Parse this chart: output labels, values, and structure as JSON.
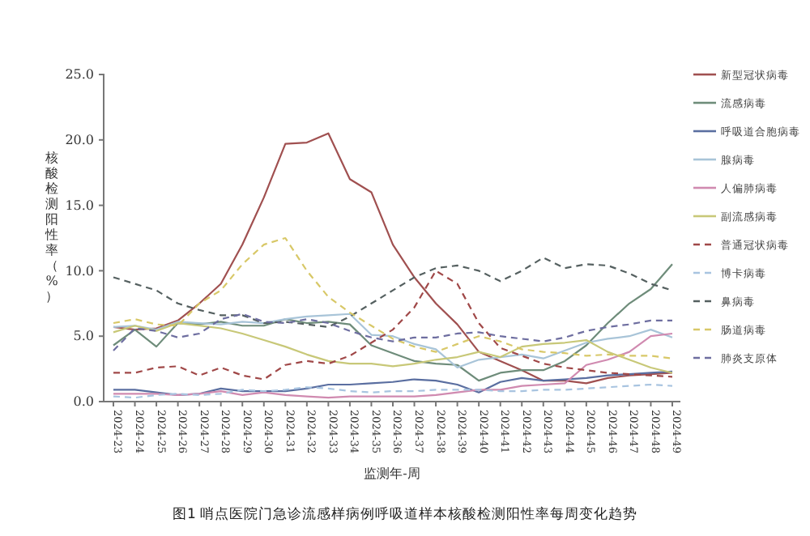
{
  "chart_data": {
    "type": "line",
    "xlabel": "监测年-周",
    "ylabel": "核酸检测阳性率（%）",
    "annotations": [
      "图1 哨点医院门急诊流感样病例呼吸道样本核酸检测阳性率每周变化趋势"
    ],
    "categories": [
      "2024-23",
      "2024-24",
      "2024-25",
      "2024-26",
      "2024-27",
      "2024-28",
      "2024-29",
      "2024-30",
      "2024-31",
      "2024-32",
      "2024-33",
      "2024-34",
      "2024-35",
      "2024-36",
      "2024-37",
      "2024-38",
      "2024-39",
      "2024-40",
      "2024-41",
      "2024-42",
      "2024-43",
      "2024-44",
      "2024-45",
      "2024-46",
      "2024-47",
      "2024-48",
      "2024-49"
    ],
    "ylim": [
      0,
      25
    ],
    "yticks": [
      {
        "value": 0,
        "label": "0.0"
      },
      {
        "value": 5,
        "label": "5.0"
      },
      {
        "value": 10,
        "label": "10.0"
      },
      {
        "value": 15,
        "label": "15.0"
      },
      {
        "value": 20,
        "label": "20.0"
      },
      {
        "value": 25,
        "label": "25.0"
      }
    ],
    "grid": false,
    "legend": "right",
    "series": [
      {
        "name": "新型冠状病毒",
        "color": "#a05050",
        "line_style": "solid",
        "values": [
          5.7,
          5.5,
          5.6,
          6.2,
          7.5,
          9.0,
          12.0,
          15.6,
          19.7,
          19.8,
          20.5,
          17.0,
          16.0,
          12.0,
          9.5,
          7.5,
          5.9,
          3.8,
          3.1,
          2.4,
          1.6,
          1.6,
          1.4,
          1.8,
          2.0,
          2.1,
          2.2
        ]
      },
      {
        "name": "流感病毒",
        "color": "#6e8c7a",
        "line_style": "solid",
        "values": [
          4.3,
          5.5,
          4.2,
          6.0,
          5.9,
          6.1,
          5.8,
          5.8,
          6.3,
          6.0,
          6.1,
          5.9,
          4.3,
          3.7,
          3.1,
          2.9,
          2.8,
          1.6,
          2.2,
          2.4,
          2.4,
          3.1,
          4.3,
          6.0,
          7.5,
          8.6,
          10.5
        ]
      },
      {
        "name": "呼吸道合胞病毒",
        "color": "#5a6ea0",
        "line_style": "solid",
        "values": [
          0.9,
          0.9,
          0.7,
          0.5,
          0.6,
          1.0,
          0.8,
          0.8,
          0.8,
          1.0,
          1.3,
          1.3,
          1.4,
          1.5,
          1.7,
          1.6,
          1.3,
          0.7,
          1.5,
          1.8,
          1.6,
          1.7,
          1.8,
          2.0,
          2.1,
          2.2,
          2.3
        ]
      },
      {
        "name": "腺病毒",
        "color": "#a8c4d8",
        "line_style": "solid",
        "values": [
          5.7,
          5.8,
          5.5,
          6.1,
          6.0,
          5.9,
          6.1,
          6.0,
          6.3,
          6.5,
          6.6,
          6.7,
          5.1,
          5.0,
          4.4,
          4.0,
          2.6,
          3.2,
          3.4,
          3.6,
          3.3,
          3.9,
          4.5,
          4.8,
          5.0,
          5.5,
          4.9
        ]
      },
      {
        "name": "人偏肺病毒",
        "color": "#d08ab0",
        "line_style": "solid",
        "values": [
          0.6,
          0.6,
          0.6,
          0.5,
          0.6,
          0.8,
          0.5,
          0.7,
          0.5,
          0.4,
          0.3,
          0.4,
          0.4,
          0.4,
          0.4,
          0.5,
          0.7,
          0.9,
          0.9,
          1.2,
          1.3,
          1.4,
          2.8,
          3.2,
          3.8,
          5.0,
          5.2
        ]
      },
      {
        "name": "副流感病毒",
        "color": "#c8c878",
        "line_style": "solid",
        "values": [
          5.3,
          5.8,
          5.4,
          6.0,
          5.8,
          5.6,
          5.2,
          4.7,
          4.2,
          3.6,
          3.1,
          2.9,
          2.9,
          2.7,
          2.9,
          3.2,
          3.4,
          3.8,
          3.4,
          4.2,
          4.4,
          4.5,
          4.7,
          3.8,
          3.2,
          2.6,
          2.2
        ]
      },
      {
        "name": "普通冠状病毒",
        "color": "#a04848",
        "line_style": "dashed",
        "values": [
          2.2,
          2.2,
          2.6,
          2.7,
          2.0,
          2.6,
          2.0,
          1.7,
          2.8,
          3.1,
          2.9,
          3.5,
          4.5,
          5.5,
          7.2,
          10.0,
          9.0,
          6.0,
          4.1,
          3.5,
          2.9,
          2.6,
          2.4,
          2.2,
          2.1,
          2.0,
          1.9
        ]
      },
      {
        "name": "博卡病毒",
        "color": "#a8c4e0",
        "line_style": "dashed",
        "values": [
          0.4,
          0.3,
          0.5,
          0.6,
          0.5,
          0.6,
          0.9,
          0.8,
          0.9,
          1.1,
          1.0,
          0.8,
          0.7,
          0.8,
          0.8,
          0.9,
          0.9,
          0.9,
          0.8,
          0.8,
          0.9,
          0.9,
          1.0,
          1.1,
          1.2,
          1.3,
          1.2
        ]
      },
      {
        "name": "鼻病毒",
        "color": "#556060",
        "line_style": "dashed",
        "values": [
          9.5,
          9.0,
          8.5,
          7.5,
          7.0,
          6.6,
          6.6,
          6.0,
          6.1,
          5.9,
          5.7,
          6.5,
          7.5,
          8.5,
          9.5,
          10.2,
          10.4,
          10.0,
          9.2,
          10.0,
          11.0,
          10.2,
          10.5,
          10.4,
          9.8,
          9.0,
          8.5
        ]
      },
      {
        "name": "肠道病毒",
        "color": "#d8c868",
        "line_style": "dashed",
        "values": [
          6.0,
          6.3,
          5.9,
          5.8,
          7.5,
          8.5,
          10.5,
          12.0,
          12.5,
          10.0,
          8.0,
          6.8,
          5.8,
          4.8,
          4.2,
          3.8,
          4.4,
          5.0,
          4.6,
          4.0,
          3.8,
          3.7,
          3.5,
          3.6,
          3.5,
          3.5,
          3.3
        ]
      },
      {
        "name": "肺炎支原体",
        "color": "#6e6ea0",
        "line_style": "dashed",
        "values": [
          3.9,
          5.6,
          5.4,
          4.9,
          5.2,
          6.3,
          6.7,
          6.1,
          6.0,
          6.3,
          6.0,
          5.4,
          4.9,
          4.6,
          4.9,
          4.9,
          5.2,
          5.3,
          5.0,
          4.8,
          4.6,
          4.9,
          5.4,
          5.7,
          5.9,
          6.2,
          6.2
        ]
      }
    ]
  }
}
